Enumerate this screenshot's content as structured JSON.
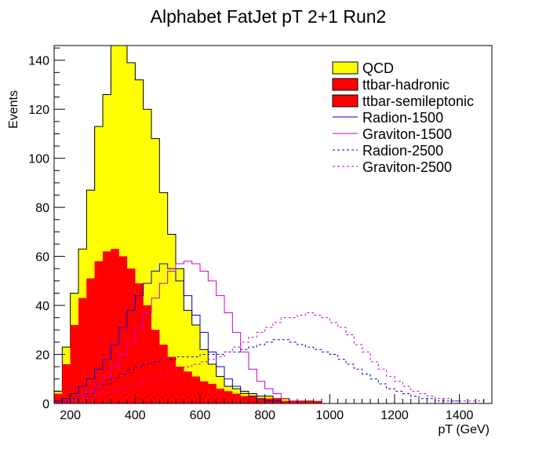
{
  "chart_data": {
    "type": "histogram",
    "title": "Alphabet FatJet pT 2+1 Run2",
    "xlabel": "pT (GeV)",
    "ylabel": "Events",
    "xlim": [
      150,
      1500
    ],
    "ylim": [
      0,
      146
    ],
    "x_ticks": [
      200,
      400,
      600,
      800,
      1000,
      1200,
      1400
    ],
    "y_ticks": [
      0,
      20,
      40,
      60,
      80,
      100,
      120,
      140
    ],
    "bin_width": 25,
    "legend_placement": "top-right",
    "grid": false,
    "stacked_series": [
      {
        "name": "QCD",
        "style": "filled",
        "color": "#ffff00",
        "stack_top_values": [
          5,
          23,
          45,
          63,
          87,
          113,
          126,
          156,
          157,
          139,
          132,
          120,
          108,
          86,
          69,
          55,
          38,
          32,
          22,
          16,
          11,
          7,
          6,
          5,
          4,
          3,
          3,
          2,
          2,
          1,
          1,
          1,
          0,
          0,
          0,
          0,
          0,
          0,
          0,
          0,
          0,
          0,
          0,
          0,
          0,
          0,
          0,
          0,
          0,
          0,
          0,
          0,
          0,
          0
        ]
      },
      {
        "name": "ttbar-hadronic",
        "style": "filled",
        "color": "#ff0000",
        "stack_top_values": [
          4,
          16,
          32,
          43,
          51,
          58,
          62,
          63,
          60,
          55,
          49,
          40,
          30,
          24,
          19,
          15,
          13,
          11,
          9,
          8,
          6,
          5,
          4,
          3,
          3,
          2,
          2,
          2,
          1,
          1,
          1,
          1,
          1,
          0,
          0,
          0,
          0,
          0,
          0,
          0,
          0,
          0,
          0,
          0,
          0,
          0,
          0,
          0,
          0,
          0,
          0,
          0,
          0,
          0
        ]
      },
      {
        "name": "ttbar-semileptonic",
        "style": "filled",
        "color": "#ff0000",
        "stack_top_values": [
          4,
          16,
          32,
          43,
          51,
          58,
          62,
          63,
          60,
          55,
          49,
          40,
          30,
          24,
          19,
          15,
          13,
          11,
          9,
          8,
          6,
          5,
          4,
          3,
          3,
          2,
          2,
          2,
          1,
          1,
          1,
          1,
          1,
          0,
          0,
          0,
          0,
          0,
          0,
          0,
          0,
          0,
          0,
          0,
          0,
          0,
          0,
          0,
          0,
          0,
          0,
          0,
          0,
          0
        ]
      }
    ],
    "line_series": [
      {
        "name": "Radion-1500",
        "color": "#0000cc",
        "dashed": false,
        "values": [
          1,
          2,
          4,
          7,
          10,
          14,
          18,
          24,
          31,
          38,
          44,
          49,
          54,
          57,
          55,
          50,
          44,
          36,
          29,
          21,
          15,
          10,
          7,
          4,
          3,
          2,
          1,
          1,
          0,
          0,
          0,
          0,
          0,
          0,
          0,
          0,
          0,
          0,
          0,
          0,
          0,
          0,
          0,
          0,
          0,
          0,
          0,
          0,
          0,
          0,
          0,
          0,
          0,
          0
        ]
      },
      {
        "name": "Graviton-1500",
        "color": "#cc00cc",
        "dashed": false,
        "values": [
          0,
          1,
          2,
          3,
          5,
          8,
          11,
          15,
          20,
          25,
          31,
          37,
          43,
          49,
          54,
          57,
          58,
          57,
          54,
          50,
          44,
          37,
          29,
          21,
          14,
          9,
          6,
          4,
          2,
          1,
          1,
          0,
          0,
          0,
          0,
          0,
          0,
          0,
          0,
          0,
          0,
          0,
          0,
          0,
          0,
          0,
          0,
          0,
          0,
          0,
          0,
          0,
          0,
          0
        ]
      },
      {
        "name": "Radion-2500",
        "color": "#0000cc",
        "dashed": true,
        "values": [
          0,
          1,
          2,
          3,
          4,
          6,
          8,
          10,
          12,
          14,
          15,
          16,
          17,
          18,
          18,
          19,
          19,
          19,
          20,
          20,
          20,
          21,
          21,
          22,
          23,
          24,
          25,
          26,
          26,
          25,
          24,
          23,
          22,
          21,
          20,
          18,
          16,
          14,
          12,
          10,
          8,
          6,
          5,
          4,
          3,
          2,
          2,
          1,
          1,
          1,
          0,
          0,
          0,
          0
        ]
      },
      {
        "name": "Graviton-2500",
        "color": "#cc00cc",
        "dashed": true,
        "values": [
          0,
          0,
          1,
          1,
          2,
          3,
          4,
          5,
          6,
          7,
          8,
          10,
          11,
          12,
          13,
          14,
          15,
          16,
          17,
          18,
          19,
          21,
          23,
          25,
          27,
          29,
          31,
          33,
          35,
          35,
          36,
          37,
          36,
          35,
          33,
          31,
          28,
          24,
          21,
          17,
          14,
          11,
          9,
          7,
          5,
          4,
          3,
          2,
          2,
          1,
          1,
          1,
          1,
          0
        ]
      }
    ]
  }
}
